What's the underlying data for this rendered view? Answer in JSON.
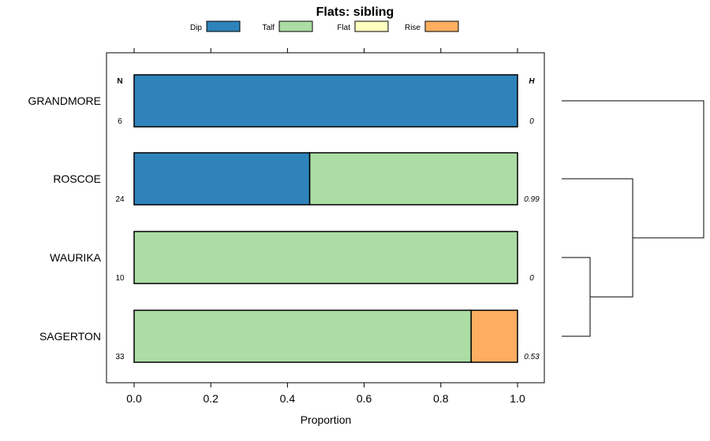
{
  "chart_data": {
    "type": "bar",
    "orientation": "horizontal",
    "stacked": true,
    "title": "Flats: sibling",
    "xlabel": "Proportion",
    "ylabel": "",
    "xlim": [
      -0.07,
      1.07
    ],
    "xticks": [
      "0.0",
      "0.2",
      "0.4",
      "0.6",
      "0.8",
      "1.0"
    ],
    "legend_position": "top",
    "legend": [
      {
        "name": "Dip",
        "color": "#2e83ba"
      },
      {
        "name": "Talf",
        "color": "#acdda4"
      },
      {
        "name": "Flat",
        "color": "#ffffbf"
      },
      {
        "name": "Rise",
        "color": "#fdae61"
      }
    ],
    "n_header": "N",
    "h_header": "H",
    "categories": [
      "GRANDMORE",
      "ROSCOE",
      "WAURIKA",
      "SAGERTON"
    ],
    "n_values": [
      "6",
      "24",
      "10",
      "33"
    ],
    "h_values": [
      "0",
      "0.99",
      "0",
      "0.53"
    ],
    "series": [
      {
        "name": "Dip",
        "values": [
          1.0,
          0.458,
          0.0,
          0.0
        ]
      },
      {
        "name": "Talf",
        "values": [
          0.0,
          0.542,
          1.0,
          0.879
        ]
      },
      {
        "name": "Flat",
        "values": [
          0.0,
          0.0,
          0.0,
          0.0
        ]
      },
      {
        "name": "Rise",
        "values": [
          0.0,
          0.0,
          0.0,
          0.121
        ]
      }
    ],
    "dendrogram": {
      "merges": [
        {
          "left": "WAURIKA",
          "right": "SAGERTON",
          "height": 0.2
        },
        {
          "left": "ROSCOE",
          "right": "WAURIKA+SAGERTON",
          "height": 0.5
        },
        {
          "left": "GRANDMORE",
          "right": "ROSCOE+WAURIKA+SAGERTON",
          "height": 1.0
        }
      ]
    }
  }
}
